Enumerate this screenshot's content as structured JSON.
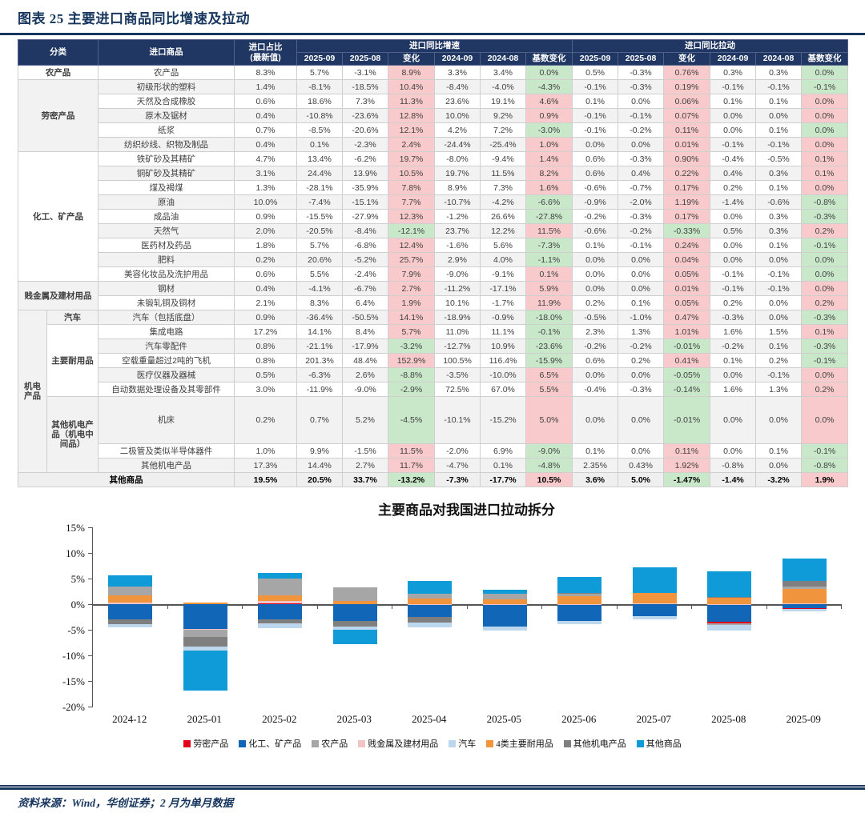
{
  "title": "图表 25  主要进口商品同比增速及拉动",
  "footer": "资料来源：Wind，华创证券；2 月为单月数据",
  "colors": {
    "navy": "#17365d",
    "header_bg": "#203764",
    "pink_bg": "#f8cacb",
    "pink_text": "#e02b1e",
    "green_bg": "#c9e8ca",
    "green_text": "#3f9e3f"
  },
  "table": {
    "col_headers": {
      "category": "分类",
      "item": "进口商品",
      "share_line1": "进口占比",
      "share_line2": "(最新值)",
      "growth_group": "进口同比增速",
      "pull_group": "进口同比拉动",
      "sub": [
        "2025-09",
        "2025-08",
        "变化",
        "2024-09",
        "2024-08",
        "基数变化"
      ]
    },
    "rows": [
      {
        "cat": [
          {
            "l": "农产品",
            "rs": 1,
            "cs": 2
          }
        ],
        "item": "农产品",
        "share": "8.3%",
        "g": [
          "5.7%",
          "-3.1%",
          "8.9%",
          "3.3%",
          "3.4%",
          "0.0%"
        ],
        "gc": [
          "",
          "",
          "r",
          "",
          "",
          "g"
        ],
        "p": [
          "0.5%",
          "-0.3%",
          "0.76%",
          "0.3%",
          "0.3%",
          "0.0%"
        ],
        "pc": [
          "",
          "",
          "r",
          "",
          "",
          "g"
        ]
      },
      {
        "cat": [
          {
            "l": "劳密产品",
            "rs": 5,
            "cs": 2
          }
        ],
        "item": "初级形状的塑料",
        "share": "1.4%",
        "g": [
          "-8.1%",
          "-18.5%",
          "10.4%",
          "-8.4%",
          "-4.0%",
          "-4.3%"
        ],
        "gc": [
          "",
          "",
          "r",
          "",
          "",
          "g"
        ],
        "p": [
          "-0.1%",
          "-0.3%",
          "0.19%",
          "-0.1%",
          "-0.1%",
          "-0.1%"
        ],
        "pc": [
          "",
          "",
          "r",
          "",
          "",
          "g"
        ]
      },
      {
        "cat": [],
        "item": "天然及合成橡胶",
        "share": "0.6%",
        "g": [
          "18.6%",
          "7.3%",
          "11.3%",
          "23.6%",
          "19.1%",
          "4.6%"
        ],
        "gc": [
          "",
          "",
          "r",
          "",
          "",
          "r"
        ],
        "p": [
          "0.1%",
          "0.0%",
          "0.06%",
          "0.1%",
          "0.1%",
          "0.0%"
        ],
        "pc": [
          "",
          "",
          "r",
          "",
          "",
          "r"
        ]
      },
      {
        "cat": [],
        "item": "原木及锯材",
        "share": "0.4%",
        "g": [
          "-10.8%",
          "-23.6%",
          "12.8%",
          "10.0%",
          "9.2%",
          "0.9%"
        ],
        "gc": [
          "",
          "",
          "r",
          "",
          "",
          "r"
        ],
        "p": [
          "-0.1%",
          "-0.1%",
          "0.07%",
          "0.0%",
          "0.0%",
          "0.0%"
        ],
        "pc": [
          "",
          "",
          "r",
          "",
          "",
          "r"
        ]
      },
      {
        "cat": [],
        "item": "纸浆",
        "share": "0.7%",
        "g": [
          "-8.5%",
          "-20.6%",
          "12.1%",
          "4.2%",
          "7.2%",
          "-3.0%"
        ],
        "gc": [
          "",
          "",
          "r",
          "",
          "",
          "g"
        ],
        "p": [
          "-0.1%",
          "-0.2%",
          "0.11%",
          "0.0%",
          "0.1%",
          "0.0%"
        ],
        "pc": [
          "",
          "",
          "r",
          "",
          "",
          "g"
        ]
      },
      {
        "cat": [],
        "item": "纺织纱线、织物及制品",
        "share": "0.4%",
        "g": [
          "0.1%",
          "-2.3%",
          "2.4%",
          "-24.4%",
          "-25.4%",
          "1.0%"
        ],
        "gc": [
          "",
          "",
          "r",
          "",
          "",
          "r"
        ],
        "p": [
          "0.0%",
          "0.0%",
          "0.01%",
          "-0.1%",
          "-0.1%",
          "0.0%"
        ],
        "pc": [
          "",
          "",
          "r",
          "",
          "",
          "r"
        ]
      },
      {
        "cat": [
          {
            "l": "化工、矿产品",
            "rs": 9,
            "cs": 2
          }
        ],
        "item": "铁矿砂及其精矿",
        "share": "4.7%",
        "g": [
          "13.4%",
          "-6.2%",
          "19.7%",
          "-8.0%",
          "-9.4%",
          "1.4%"
        ],
        "gc": [
          "",
          "",
          "r",
          "",
          "",
          "r"
        ],
        "p": [
          "0.6%",
          "-0.3%",
          "0.90%",
          "-0.4%",
          "-0.5%",
          "0.1%"
        ],
        "pc": [
          "",
          "",
          "r",
          "",
          "",
          "r"
        ]
      },
      {
        "cat": [],
        "item": "铜矿砂及其精矿",
        "share": "3.1%",
        "g": [
          "24.4%",
          "13.9%",
          "10.5%",
          "19.7%",
          "11.5%",
          "8.2%"
        ],
        "gc": [
          "",
          "",
          "r",
          "",
          "",
          "r"
        ],
        "p": [
          "0.6%",
          "0.4%",
          "0.22%",
          "0.4%",
          "0.3%",
          "0.1%"
        ],
        "pc": [
          "",
          "",
          "r",
          "",
          "",
          "r"
        ]
      },
      {
        "cat": [],
        "item": "煤及褐煤",
        "share": "1.3%",
        "g": [
          "-28.1%",
          "-35.9%",
          "7.8%",
          "8.9%",
          "7.3%",
          "1.6%"
        ],
        "gc": [
          "",
          "",
          "r",
          "",
          "",
          "r"
        ],
        "p": [
          "-0.6%",
          "-0.7%",
          "0.17%",
          "0.2%",
          "0.1%",
          "0.0%"
        ],
        "pc": [
          "",
          "",
          "r",
          "",
          "",
          "r"
        ]
      },
      {
        "cat": [],
        "item": "原油",
        "share": "10.0%",
        "g": [
          "-7.4%",
          "-15.1%",
          "7.7%",
          "-10.7%",
          "-4.2%",
          "-6.6%"
        ],
        "gc": [
          "",
          "",
          "r",
          "",
          "",
          "g"
        ],
        "p": [
          "-0.9%",
          "-2.0%",
          "1.19%",
          "-1.4%",
          "-0.6%",
          "-0.8%"
        ],
        "pc": [
          "",
          "",
          "r",
          "",
          "",
          "g"
        ]
      },
      {
        "cat": [],
        "item": "成品油",
        "share": "0.9%",
        "g": [
          "-15.5%",
          "-27.9%",
          "12.3%",
          "-1.2%",
          "26.6%",
          "-27.8%"
        ],
        "gc": [
          "",
          "",
          "r",
          "",
          "",
          "g"
        ],
        "p": [
          "-0.2%",
          "-0.3%",
          "0.17%",
          "0.0%",
          "0.3%",
          "-0.3%"
        ],
        "pc": [
          "",
          "",
          "r",
          "",
          "",
          "g"
        ]
      },
      {
        "cat": [],
        "item": "天然气",
        "share": "2.0%",
        "g": [
          "-20.5%",
          "-8.4%",
          "-12.1%",
          "23.7%",
          "12.2%",
          "11.5%"
        ],
        "gc": [
          "",
          "",
          "g",
          "",
          "",
          "r"
        ],
        "p": [
          "-0.6%",
          "-0.2%",
          "-0.33%",
          "0.5%",
          "0.3%",
          "0.2%"
        ],
        "pc": [
          "",
          "",
          "g",
          "",
          "",
          "r"
        ]
      },
      {
        "cat": [],
        "item": "医药材及药品",
        "share": "1.8%",
        "g": [
          "5.7%",
          "-6.8%",
          "12.4%",
          "-1.6%",
          "5.6%",
          "-7.3%"
        ],
        "gc": [
          "",
          "",
          "r",
          "",
          "",
          "g"
        ],
        "p": [
          "0.1%",
          "-0.1%",
          "0.24%",
          "0.0%",
          "0.1%",
          "-0.1%"
        ],
        "pc": [
          "",
          "",
          "r",
          "",
          "",
          "g"
        ]
      },
      {
        "cat": [],
        "item": "肥料",
        "share": "0.2%",
        "g": [
          "20.6%",
          "-5.2%",
          "25.7%",
          "2.9%",
          "4.0%",
          "-1.1%"
        ],
        "gc": [
          "",
          "",
          "r",
          "",
          "",
          "g"
        ],
        "p": [
          "0.0%",
          "0.0%",
          "0.04%",
          "0.0%",
          "0.0%",
          "0.0%"
        ],
        "pc": [
          "",
          "",
          "r",
          "",
          "",
          "g"
        ]
      },
      {
        "cat": [],
        "item": "美容化妆品及洗护用品",
        "share": "0.6%",
        "g": [
          "5.5%",
          "-2.4%",
          "7.9%",
          "-9.0%",
          "-9.1%",
          "0.1%"
        ],
        "gc": [
          "",
          "",
          "r",
          "",
          "",
          "r"
        ],
        "p": [
          "0.0%",
          "0.0%",
          "0.05%",
          "-0.1%",
          "-0.1%",
          "0.0%"
        ],
        "pc": [
          "",
          "",
          "r",
          "",
          "",
          "g"
        ]
      },
      {
        "cat": [
          {
            "l": "贱金属及建材用品",
            "rs": 2,
            "cs": 2
          }
        ],
        "item": "钢材",
        "share": "0.4%",
        "g": [
          "-4.1%",
          "-6.7%",
          "2.7%",
          "-11.2%",
          "-17.1%",
          "5.9%"
        ],
        "gc": [
          "",
          "",
          "r",
          "",
          "",
          "r"
        ],
        "p": [
          "0.0%",
          "0.0%",
          "0.01%",
          "-0.1%",
          "-0.1%",
          "0.0%"
        ],
        "pc": [
          "",
          "",
          "r",
          "",
          "",
          "r"
        ]
      },
      {
        "cat": [],
        "item": "未锻轧铜及铜材",
        "share": "2.1%",
        "g": [
          "8.3%",
          "6.4%",
          "1.9%",
          "10.1%",
          "-1.7%",
          "11.9%"
        ],
        "gc": [
          "",
          "",
          "r",
          "",
          "",
          "r"
        ],
        "p": [
          "0.2%",
          "0.1%",
          "0.05%",
          "0.2%",
          "0.0%",
          "0.2%"
        ],
        "pc": [
          "",
          "",
          "r",
          "",
          "",
          "r"
        ]
      },
      {
        "cat": [
          {
            "l": "机电产品",
            "rs": 9,
            "cs": 1,
            "vert": 1
          },
          {
            "l": "汽车",
            "rs": 1,
            "cs": 1
          }
        ],
        "item": "汽车（包括底盘）",
        "share": "0.9%",
        "g": [
          "-36.4%",
          "-50.5%",
          "14.1%",
          "-18.9%",
          "-0.9%",
          "-18.0%"
        ],
        "gc": [
          "",
          "",
          "r",
          "",
          "",
          "g"
        ],
        "p": [
          "-0.5%",
          "-1.0%",
          "0.47%",
          "-0.3%",
          "0.0%",
          "-0.3%"
        ],
        "pc": [
          "",
          "",
          "r",
          "",
          "",
          "g"
        ]
      },
      {
        "cat": [
          {
            "l": "主要耐用品",
            "rs": 5,
            "cs": 1
          }
        ],
        "item": "集成电路",
        "share": "17.2%",
        "g": [
          "14.1%",
          "8.4%",
          "5.7%",
          "11.0%",
          "11.1%",
          "-0.1%"
        ],
        "gc": [
          "",
          "",
          "r",
          "",
          "",
          "g"
        ],
        "p": [
          "2.3%",
          "1.3%",
          "1.01%",
          "1.6%",
          "1.5%",
          "0.1%"
        ],
        "pc": [
          "",
          "",
          "r",
          "",
          "",
          "r"
        ]
      },
      {
        "cat": [],
        "item": "汽车零配件",
        "share": "0.8%",
        "g": [
          "-21.1%",
          "-17.9%",
          "-3.2%",
          "-12.7%",
          "10.9%",
          "-23.6%"
        ],
        "gc": [
          "",
          "",
          "g",
          "",
          "",
          "g"
        ],
        "p": [
          "-0.2%",
          "-0.2%",
          "-0.01%",
          "-0.2%",
          "0.1%",
          "-0.3%"
        ],
        "pc": [
          "",
          "",
          "g",
          "",
          "",
          "g"
        ]
      },
      {
        "cat": [],
        "item": "空载重量超过2吨的飞机",
        "share": "0.8%",
        "g": [
          "201.3%",
          "48.4%",
          "152.9%",
          "100.5%",
          "116.4%",
          "-15.9%"
        ],
        "gc": [
          "",
          "",
          "r",
          "",
          "",
          "g"
        ],
        "p": [
          "0.6%",
          "0.2%",
          "0.41%",
          "0.1%",
          "0.2%",
          "-0.1%"
        ],
        "pc": [
          "",
          "",
          "r",
          "",
          "",
          "g"
        ]
      },
      {
        "cat": [],
        "item": "医疗仪器及器械",
        "share": "0.5%",
        "g": [
          "-6.3%",
          "2.6%",
          "-8.8%",
          "-3.5%",
          "-10.0%",
          "6.5%"
        ],
        "gc": [
          "",
          "",
          "g",
          "",
          "",
          "r"
        ],
        "p": [
          "0.0%",
          "0.0%",
          "-0.05%",
          "0.0%",
          "-0.1%",
          "0.0%"
        ],
        "pc": [
          "",
          "",
          "g",
          "",
          "",
          "r"
        ]
      },
      {
        "cat": [],
        "item": "自动数据处理设备及其零部件",
        "share": "3.0%",
        "g": [
          "-11.9%",
          "-9.0%",
          "-2.9%",
          "72.5%",
          "67.0%",
          "5.5%"
        ],
        "gc": [
          "",
          "",
          "g",
          "",
          "",
          "r"
        ],
        "p": [
          "-0.4%",
          "-0.3%",
          "-0.14%",
          "1.6%",
          "1.3%",
          "0.2%"
        ],
        "pc": [
          "",
          "",
          "g",
          "",
          "",
          "r"
        ]
      },
      {
        "cat": [
          {
            "l": "其他机电产品（机电中间品）",
            "rs": 3,
            "cs": 1
          }
        ],
        "item": "机床",
        "share": "0.2%",
        "g": [
          "0.7%",
          "5.2%",
          "-4.5%",
          "-10.1%",
          "-15.2%",
          "5.0%"
        ],
        "gc": [
          "",
          "",
          "g",
          "",
          "",
          "r"
        ],
        "p": [
          "0.0%",
          "0.0%",
          "-0.01%",
          "0.0%",
          "0.0%",
          "0.0%"
        ],
        "pc": [
          "",
          "",
          "g",
          "",
          "",
          "r"
        ],
        "tall": 1
      },
      {
        "cat": [],
        "item": "二极管及类似半导体器件",
        "share": "1.0%",
        "g": [
          "9.9%",
          "-1.5%",
          "11.5%",
          "-2.0%",
          "6.9%",
          "-9.0%"
        ],
        "gc": [
          "",
          "",
          "r",
          "",
          "",
          "g"
        ],
        "p": [
          "0.1%",
          "0.0%",
          "0.11%",
          "0.0%",
          "0.1%",
          "-0.1%"
        ],
        "pc": [
          "",
          "",
          "r",
          "",
          "",
          "g"
        ]
      },
      {
        "cat": [],
        "item": "其他机电产品",
        "share": "17.3%",
        "g": [
          "14.4%",
          "2.7%",
          "11.7%",
          "-4.7%",
          "0.1%",
          "-4.8%"
        ],
        "gc": [
          "",
          "",
          "r",
          "",
          "",
          "g"
        ],
        "p": [
          "2.35%",
          "0.43%",
          "1.92%",
          "-0.8%",
          "0.0%",
          "-0.8%"
        ],
        "pc": [
          "",
          "",
          "r",
          "",
          "",
          "g"
        ]
      },
      {
        "cat": [],
        "item": "其他商品",
        "share": "19.5%",
        "g": [
          "20.5%",
          "33.7%",
          "-13.2%",
          "-7.3%",
          "-17.7%",
          "10.5%"
        ],
        "gc": [
          "",
          "",
          "g",
          "",
          "",
          "r"
        ],
        "p": [
          "3.6%",
          "5.0%",
          "-1.47%",
          "-1.4%",
          "-3.2%",
          "1.9%"
        ],
        "pc": [
          "",
          "",
          "g",
          "",
          "",
          "r"
        ],
        "total": 1
      }
    ]
  },
  "chart_data": {
    "type": "bar",
    "stacked": true,
    "title": "主要商品对我国进口拉动拆分",
    "unit": "%",
    "ylim": [
      -20,
      15
    ],
    "ytick_step": 5,
    "grid": false,
    "legend_position": "bottom",
    "categories": [
      "2024-12",
      "2025-01",
      "2025-02",
      "2025-03",
      "2025-04",
      "2025-05",
      "2025-06",
      "2025-07",
      "2025-08",
      "2025-09"
    ],
    "series": [
      {
        "name": "劳密产品",
        "color": "#e0001b",
        "values": [
          0.0,
          0.0,
          0.2,
          0.0,
          0.0,
          0.0,
          0.0,
          0.0,
          -0.3,
          -0.2
        ]
      },
      {
        "name": "化工、矿产品",
        "color": "#1166b8",
        "values": [
          -3.0,
          -4.8,
          -3.0,
          -3.3,
          -2.5,
          -4.3,
          -3.2,
          -2.3,
          -3.4,
          -0.7
        ]
      },
      {
        "name": "农产品",
        "color": "#a6a6a6",
        "values": [
          1.7,
          -1.4,
          3.3,
          2.6,
          0.8,
          1.0,
          0.5,
          0.0,
          -0.3,
          0.5
        ]
      },
      {
        "name": "贱金属及建材用品",
        "color": "#f0c3c5",
        "values": [
          0.3,
          -0.2,
          0.4,
          0.0,
          0.1,
          0.1,
          0.1,
          0.2,
          0.1,
          0.2
        ]
      },
      {
        "name": "汽车",
        "color": "#bdd7ee",
        "values": [
          -0.7,
          -0.7,
          -1.0,
          -0.7,
          -0.9,
          -0.8,
          -0.7,
          -0.6,
          -1.1,
          -0.5
        ]
      },
      {
        "name": "4类主要耐用品",
        "color": "#f0953d",
        "values": [
          1.5,
          0.3,
          1.1,
          0.7,
          1.1,
          0.9,
          1.5,
          2.0,
          1.2,
          2.8
        ]
      },
      {
        "name": "其他机电产品",
        "color": "#7f7f7f",
        "values": [
          -0.8,
          -1.9,
          -0.7,
          -1.0,
          -1.1,
          0.0,
          0.1,
          0.0,
          0.1,
          1.0
        ]
      },
      {
        "name": "其他商品",
        "color": "#0f9bd7",
        "values": [
          2.1,
          -7.8,
          1.2,
          -2.8,
          2.5,
          0.9,
          3.2,
          5.1,
          5.0,
          4.5
        ]
      }
    ]
  }
}
